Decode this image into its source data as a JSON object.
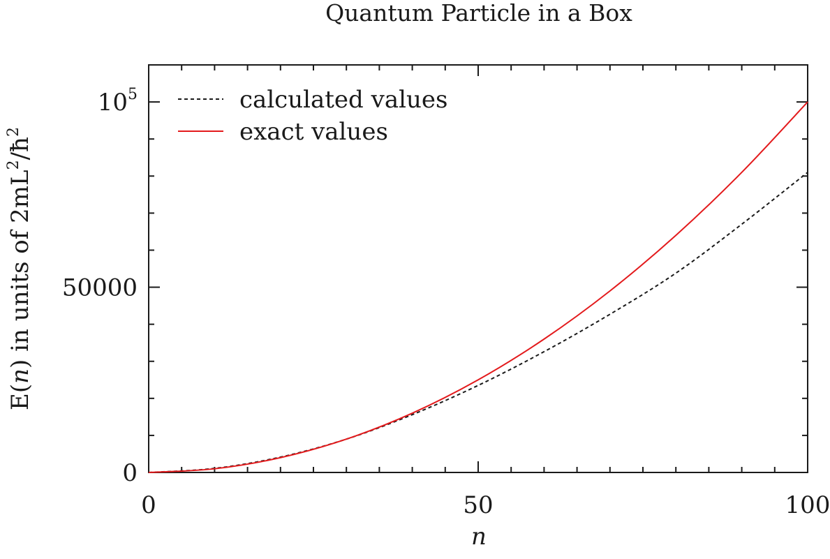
{
  "chart_data": {
    "type": "line",
    "title": "Quantum Particle in a Box",
    "xlabel": "n",
    "ylabel": {
      "prefix": "E(",
      "var": "n",
      "middle": ") in units of 2mL",
      "exp1": "2",
      "slash": "/ħ",
      "exp2": "2"
    },
    "xlim": [
      0,
      100
    ],
    "ylim": [
      0,
      110000
    ],
    "x_ticks": [
      {
        "value": 0,
        "label": "0"
      },
      {
        "value": 50,
        "label": "50"
      },
      {
        "value": 100,
        "label": "100"
      }
    ],
    "y_ticks": [
      {
        "value": 0,
        "label": "0"
      },
      {
        "value": 50000,
        "label": "50000"
      },
      {
        "value": 100000,
        "label": "10",
        "exponent": "5"
      }
    ],
    "x_minor_step": 5,
    "y_minor_step": 10000,
    "legend_position": "top-left",
    "series": [
      {
        "name": "calculated values",
        "color": "#1a1a1a",
        "style": "dashed",
        "x": [
          0,
          10,
          20,
          30,
          40,
          50,
          60,
          70,
          80,
          90,
          100
        ],
        "values": [
          0,
          1100,
          4150,
          9000,
          15600,
          23500,
          32600,
          42700,
          53800,
          67000,
          81000
        ]
      },
      {
        "name": "exact values",
        "color": "#e31a1c",
        "style": "solid",
        "x": [
          0,
          10,
          20,
          30,
          40,
          50,
          60,
          70,
          80,
          90,
          100
        ],
        "values": [
          0,
          1000,
          4000,
          9000,
          16000,
          25000,
          36000,
          49000,
          64000,
          81000,
          100000
        ]
      }
    ]
  }
}
